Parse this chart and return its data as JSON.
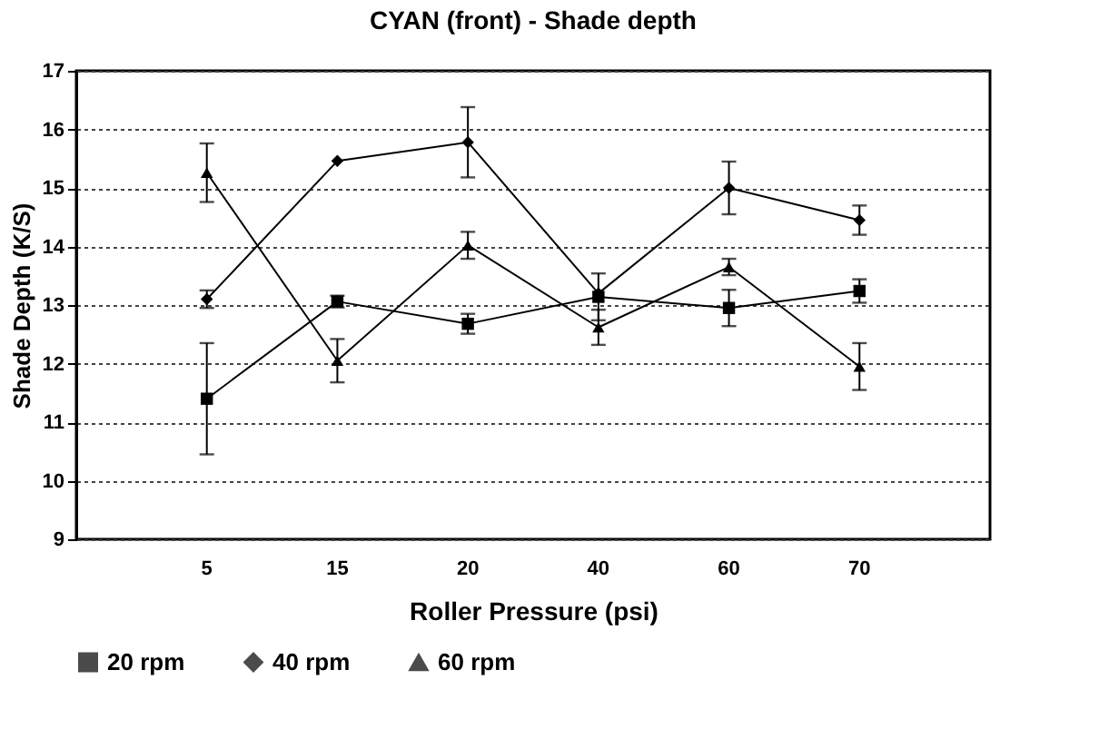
{
  "chart_data": {
    "type": "line",
    "title": "CYAN (front) - Shade depth",
    "xlabel": "Roller Pressure (psi)",
    "ylabel": "Shade Depth (K/S)",
    "categories": [
      "5",
      "15",
      "20",
      "40",
      "60",
      "70"
    ],
    "ylim": [
      9,
      17
    ],
    "yticks": [
      9,
      10,
      11,
      12,
      13,
      14,
      15,
      16,
      17
    ],
    "grid": "y",
    "legend": "bottom",
    "line_style": "solid",
    "series": [
      {
        "name": "20 rpm",
        "color": "#000000",
        "marker": "square",
        "values": [
          11.4,
          13.06,
          12.68,
          13.14,
          12.95,
          13.24
        ],
        "errors": [
          0.95,
          0.1,
          0.17,
          0.4,
          0.31,
          0.2
        ]
      },
      {
        "name": "40 rpm",
        "color": "#000000",
        "marker": "diamond",
        "values": [
          13.1,
          15.46,
          15.78,
          13.2,
          15.0,
          14.45
        ],
        "errors": [
          0.15,
          null,
          0.6,
          null,
          0.45,
          0.25
        ]
      },
      {
        "name": "60 rpm",
        "color": "#000000",
        "marker": "triangle",
        "values": [
          15.26,
          12.05,
          14.02,
          12.62,
          13.65,
          11.95
        ],
        "errors": [
          0.5,
          0.37,
          0.23,
          0.3,
          0.14,
          0.4
        ]
      }
    ]
  }
}
